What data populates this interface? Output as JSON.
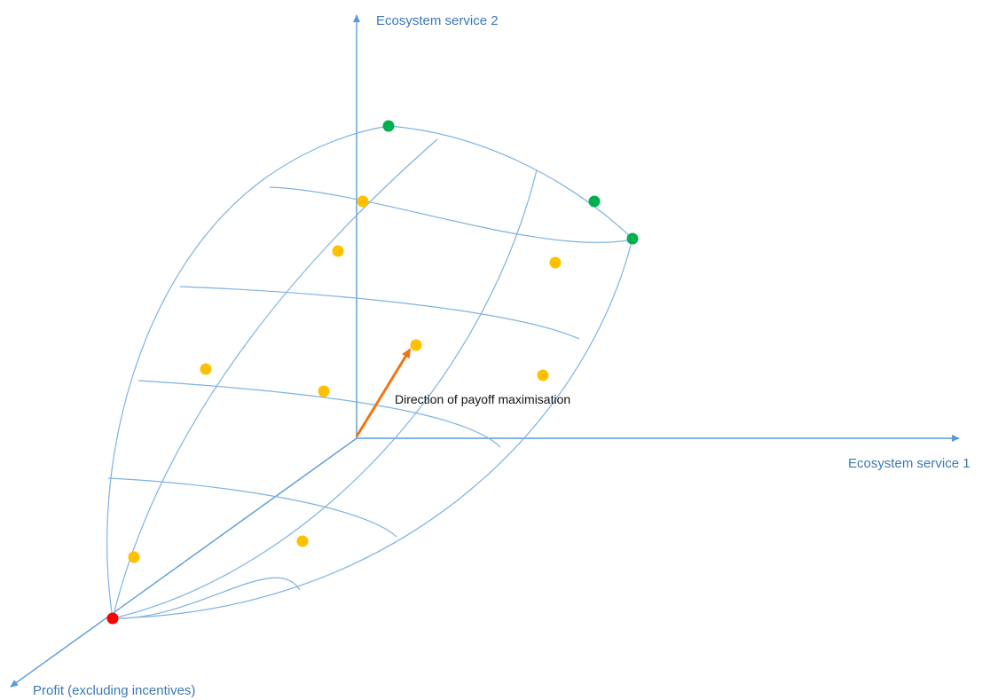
{
  "axes": {
    "ecosystem_service_2": "Ecosystem service 2",
    "ecosystem_service_1": "Ecosystem service 1",
    "profit": "Profit (excluding incentives)"
  },
  "annotation": {
    "direction_label": "Direction of payoff maximisation"
  },
  "colors": {
    "axis": "#5b9bd5",
    "grid": "#7eb2e0",
    "axis_text": "#3b78b8",
    "arrow": "#f07414",
    "point_feasible": "#ffc000",
    "point_optimal": "#00b050",
    "point_origin": "#ff0000"
  }
}
